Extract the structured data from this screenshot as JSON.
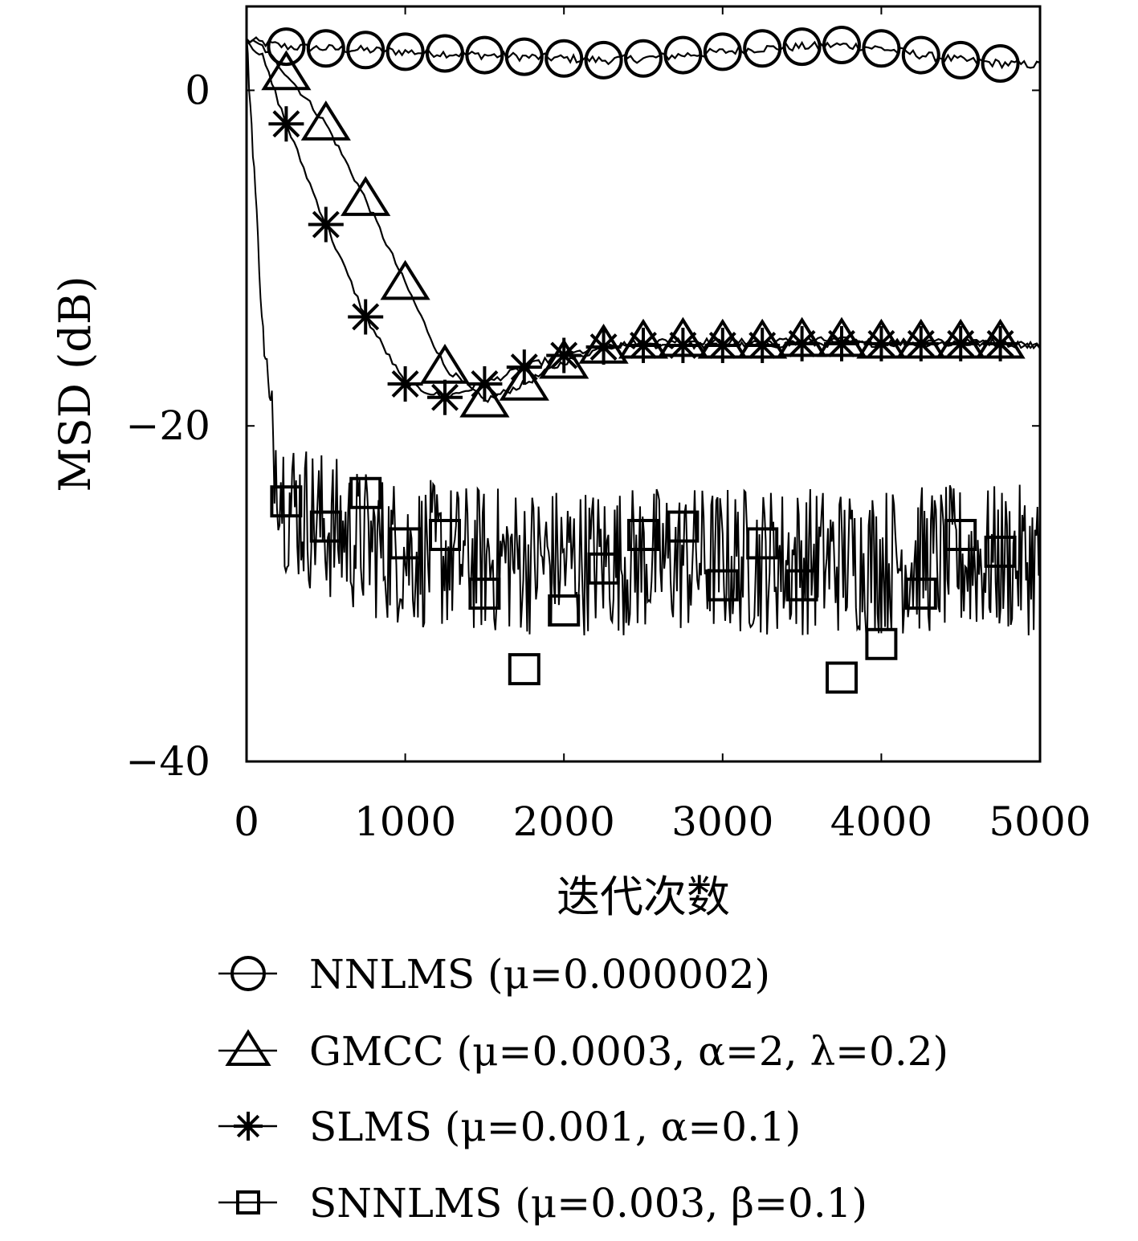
{
  "chart_data": {
    "type": "line",
    "xlabel": "迭代次数",
    "ylabel": "MSD (dB)",
    "xlim": [
      0,
      5000
    ],
    "ylim": [
      -40,
      5
    ],
    "x_ticks": [
      0,
      1000,
      2000,
      3000,
      4000,
      5000
    ],
    "y_ticks": [
      0,
      -20,
      -40
    ],
    "x_tick_labels": [
      "0",
      "1000",
      "2000",
      "3000",
      "4000",
      "5000"
    ],
    "y_tick_labels": [
      "0",
      "−20",
      "−40"
    ],
    "grid": false,
    "legend_position": "bottom",
    "series": [
      {
        "name": "NNLMS (μ=0.000002)",
        "marker": "circle",
        "x": [
          0,
          250,
          500,
          750,
          1000,
          1250,
          1500,
          1750,
          2000,
          2250,
          2500,
          2750,
          3000,
          3250,
          3500,
          3750,
          4000,
          4250,
          4500,
          4750,
          5000
        ],
        "values": [
          3.0,
          2.6,
          2.5,
          2.4,
          2.3,
          2.2,
          2.1,
          2.0,
          1.9,
          1.8,
          1.9,
          2.1,
          2.3,
          2.5,
          2.6,
          2.7,
          2.5,
          2.1,
          1.8,
          1.6,
          1.5
        ]
      },
      {
        "name": "GMCC (μ=0.0003, α=2, λ=0.2)",
        "marker": "triangle",
        "x": [
          0,
          100,
          250,
          500,
          750,
          1000,
          1250,
          1500,
          1750,
          2000,
          2250,
          2500,
          2750,
          3000,
          3250,
          3500,
          3750,
          4000,
          4250,
          4500,
          4750,
          5000
        ],
        "values": [
          3.0,
          2.6,
          1.0,
          -2.0,
          -6.5,
          -11.5,
          -16.5,
          -18.5,
          -17.5,
          -16.2,
          -15.3,
          -15.0,
          -14.9,
          -15.0,
          -15.0,
          -14.9,
          -14.9,
          -15.0,
          -15.0,
          -15.0,
          -15.0,
          -15.2
        ]
      },
      {
        "name": "SLMS (μ=0.001, α=0.1)",
        "marker": "star",
        "x": [
          0,
          100,
          250,
          500,
          750,
          1000,
          1250,
          1500,
          1750,
          2000,
          2250,
          2500,
          2750,
          3000,
          3250,
          3500,
          3750,
          4000,
          4250,
          4500,
          4750,
          5000
        ],
        "values": [
          3.0,
          2.0,
          -2.0,
          -8.0,
          -13.5,
          -17.5,
          -18.3,
          -17.5,
          -16.5,
          -15.8,
          -15.3,
          -15.2,
          -15.2,
          -15.2,
          -15.2,
          -15.1,
          -15.1,
          -15.1,
          -15.1,
          -15.1,
          -15.1,
          -15.2
        ]
      },
      {
        "name": "SNNLMS (μ=0.003, β=0.1)",
        "marker": "square",
        "x": [
          0,
          50,
          100,
          150,
          200,
          250,
          500,
          750,
          1000,
          1250,
          1500,
          1750,
          2000,
          2250,
          2500,
          2750,
          3000,
          3250,
          3500,
          3750,
          4000,
          4250,
          4500,
          4750,
          5000
        ],
        "values": [
          3.0,
          -5.0,
          -14.0,
          -20.0,
          -22.5,
          -24.5,
          -26.0,
          -27.0,
          -27.5,
          -27.8,
          -28.0,
          -28.0,
          -28.0,
          -28.0,
          -28.0,
          -28.0,
          -28.0,
          -28.0,
          -28.0,
          -28.0,
          -28.0,
          -28.0,
          -28.0,
          -28.0,
          -28.0
        ],
        "marker_points": {
          "x": [
            250,
            500,
            750,
            1000,
            1250,
            1500,
            1750,
            2000,
            2250,
            2500,
            2750,
            3000,
            3250,
            3500,
            3750,
            4000,
            4250,
            4500,
            4750
          ],
          "values": [
            -24.5,
            -26.0,
            -24.0,
            -27.0,
            -26.5,
            -30.0,
            -34.5,
            -31.0,
            -28.5,
            -26.5,
            -26.0,
            -29.5,
            -27.0,
            -29.5,
            -35.0,
            -33.0,
            -30.0,
            -26.5,
            -27.5
          ]
        }
      }
    ]
  }
}
